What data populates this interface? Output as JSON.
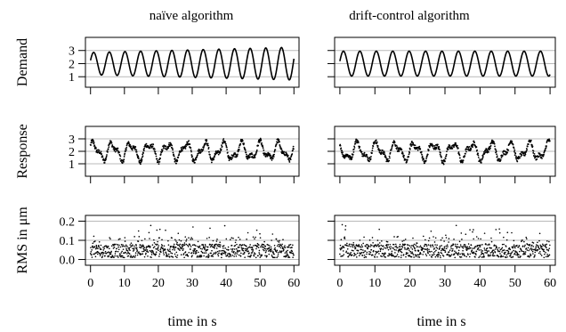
{
  "chart_data": {
    "type": "scatter",
    "layout": "3x2 grid of panels; rows share a y-axis label, columns share the x-axis (time)",
    "columns": [
      {
        "title": "naïve algorithm"
      },
      {
        "title": "drift-control algorithm"
      }
    ],
    "rows": [
      {
        "ylabel": "Demand",
        "yticks": [
          "1",
          "2",
          "3"
        ],
        "yvals": [
          1,
          2,
          3
        ],
        "ylim": [
          0.2,
          4.0
        ],
        "gridlines": [
          1,
          2,
          3
        ],
        "style": "line"
      },
      {
        "ylabel": "Response",
        "yticks": [
          "1",
          "2",
          "3"
        ],
        "yvals": [
          1,
          2,
          3
        ],
        "ylim": [
          0.0,
          4.0
        ],
        "gridlines": [
          1,
          2,
          3
        ],
        "style": "points"
      },
      {
        "ylabel": "RMS in μm",
        "yticks": [
          "0.0",
          "0.1",
          "0.2"
        ],
        "yvals": [
          0.0,
          0.1,
          0.2
        ],
        "ylim": [
          -0.03,
          0.23
        ],
        "gridlines": [
          0.0,
          0.1,
          0.2
        ],
        "style": "points"
      }
    ],
    "xlabel": "time in s",
    "xticks": [
      "0",
      "10",
      "20",
      "30",
      "40",
      "50",
      "60"
    ],
    "xvals": [
      0,
      10,
      20,
      30,
      40,
      50,
      60
    ],
    "xlim": [
      -1.5,
      61.5
    ],
    "series_description": {
      "demand_naive": {
        "type": "sine",
        "center": 2.0,
        "amplitude_start": 0.85,
        "amplitude_end": 1.25,
        "cycles": 13,
        "x_range": [
          0,
          60
        ]
      },
      "demand_drift": {
        "type": "sine",
        "center": 2.0,
        "amplitude": 0.95,
        "cycles": 12.8,
        "x_range": [
          0,
          60
        ]
      },
      "response": {
        "center": 2.0,
        "amplitude": 0.85,
        "range": [
          0.7,
          3.1
        ],
        "x_range": [
          0,
          60
        ]
      },
      "rms": {
        "typical_range": [
          0.01,
          0.08
        ],
        "occasional_max": 0.19,
        "x_range": [
          0,
          60
        ]
      }
    }
  }
}
